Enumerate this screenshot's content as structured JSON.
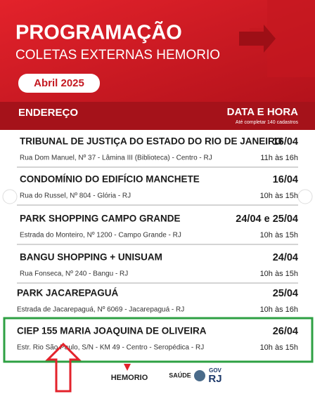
{
  "header": {
    "title": "PROGRAMAÇÃO",
    "subtitle": "COLETAS EXTERNAS HEMORIO",
    "month": "Abril 2025"
  },
  "table": {
    "columns": [
      "ENDEREÇO",
      "DATA E HORA"
    ],
    "note": "Até completar 140 cadastros",
    "rows": [
      {
        "name": "TRIBUNAL DE JUSTIÇA DO ESTADO DO RIO DE JANEIRO",
        "address": "Rua Dom Manuel, Nº 37 - Lâmina III (Biblioteca) - Centro - RJ",
        "date": "16/04",
        "time": "11h às 16h"
      },
      {
        "name": "CONDOMÍNIO DO EDIFÍCIO MANCHETE",
        "address": "Rua do Russel, Nº 804 - Glória - RJ",
        "date": "16/04",
        "time": "10h às 15h"
      },
      {
        "name": "PARK SHOPPING CAMPO GRANDE",
        "address": "Estrada do Monteiro, Nº 1200 - Campo Grande - RJ",
        "date": "24/04 e 25/04",
        "time": "10h às 15h"
      },
      {
        "name": "BANGU SHOPPING + UNISUAM",
        "address": "Rua Fonseca, Nº 240 - Bangu - RJ",
        "date": "24/04",
        "time": "10h às 15h"
      },
      {
        "name": "PARK JACAREPAGUÁ",
        "address": "Estrada de Jacarepaguá, Nº 6069 - Jacarepaguá - RJ",
        "date": "25/04",
        "time": "10h às 16h"
      },
      {
        "name": "CIEP 155 MARIA JOAQUINA DE OLIVEIRA",
        "address": "Estr. Rio São Paulo, S/N - KM 49 - Centro - Seropédica - RJ",
        "date": "26/04",
        "time": "10h às 15h"
      }
    ]
  },
  "footer": {
    "brand": "HEMORIO",
    "health": "SAÚDE",
    "gov": "GOV",
    "state": "RJ"
  }
}
